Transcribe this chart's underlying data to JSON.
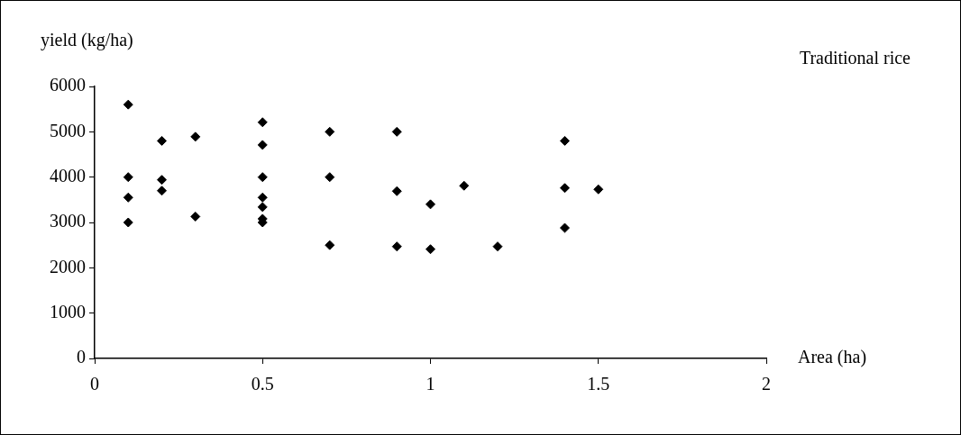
{
  "chart_data": {
    "type": "scatter",
    "title": "Traditional rice",
    "xlabel": "Area (ha)",
    "ylabel": "yield (kg/ha)",
    "x": [
      0.1,
      0.1,
      0.1,
      0.1,
      0.2,
      0.2,
      0.2,
      0.3,
      0.3,
      0.5,
      0.5,
      0.5,
      0.5,
      0.5,
      0.5,
      0.5,
      0.7,
      0.7,
      0.7,
      0.9,
      0.9,
      0.9,
      1.0,
      1.0,
      1.1,
      1.2,
      1.4,
      1.4,
      1.4,
      1.5
    ],
    "series": [
      {
        "color": "#000000",
        "values": [
          5600,
          4000,
          3550,
          3000,
          4800,
          3940,
          3700,
          4890,
          3130,
          5210,
          4710,
          4000,
          3550,
          3340,
          3080,
          3000,
          5000,
          4000,
          2500,
          5000,
          3690,
          2470,
          3400,
          2410,
          3810,
          2470,
          4800,
          3760,
          2880,
          3730
        ]
      }
    ],
    "xlim": [
      0,
      2
    ],
    "xticks": [
      0,
      0.5,
      1,
      1.5,
      2
    ],
    "ylim": [
      0,
      6000
    ],
    "yticks": [
      0,
      1000,
      2000,
      3000,
      4000,
      5000,
      6000
    ],
    "marker": "diamond",
    "grid": false,
    "legend": false
  }
}
